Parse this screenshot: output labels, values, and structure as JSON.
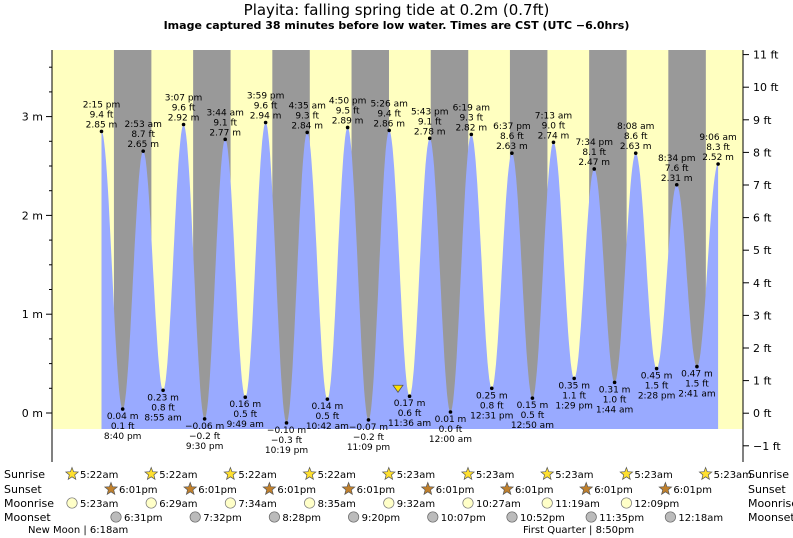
{
  "title": "Playita: falling  spring tide at 0.2m (0.7ft)",
  "subtitle": "Image captured 38 minutes before low water. Times are CST (UTC −6.0hrs)",
  "colors": {
    "day": "#ffffc0",
    "night": "#999999",
    "tide": "#99aaff",
    "moonlight": "#ffffc8",
    "moondark": "#bbbbbb",
    "star": "#ffe030",
    "sunset_star": "#c0802c"
  },
  "chart_data": {
    "type": "area",
    "title": "Playita: falling  spring tide at 0.2m (0.7ft)",
    "left_axis": {
      "unit": "m",
      "ticks": [
        {
          "v": 0,
          "label": "0 m"
        },
        {
          "v": 1,
          "label": "1 m"
        },
        {
          "v": 2,
          "label": "2 m"
        },
        {
          "v": 3,
          "label": "3 m"
        }
      ]
    },
    "right_axis": {
      "unit": "ft",
      "ticks": [
        "−1 ft",
        "0 ft",
        "1 ft",
        "2 ft",
        "3 ft",
        "4 ft",
        "5 ft",
        "6 ft",
        "7 ft",
        "8 ft",
        "9 ft",
        "10 ft",
        "11 ft"
      ]
    },
    "ylim_m": [
      -0.4,
      3.4
    ],
    "tides": [
      {
        "type": "high",
        "time": "2:15 pm",
        "ft": "9.4 ft",
        "m": "2.85 m",
        "value": 2.85
      },
      {
        "type": "low",
        "time": "8:40 pm",
        "ft": "0.1 ft",
        "m": "0.04 m",
        "value": 0.04
      },
      {
        "type": "high",
        "time": "2:53 am",
        "ft": "8.7 ft",
        "m": "2.65 m",
        "value": 2.65
      },
      {
        "type": "low",
        "time": "8:55 am",
        "ft": "0.8 ft",
        "m": "0.23 m",
        "value": 0.23
      },
      {
        "type": "high",
        "time": "3:07 pm",
        "ft": "9.6 ft",
        "m": "2.92 m",
        "value": 2.92
      },
      {
        "type": "low",
        "time": "9:30 pm",
        "ft": "−0.2 ft",
        "m": "−0.06 m",
        "value": -0.06
      },
      {
        "type": "high",
        "time": "3:44 am",
        "ft": "9.1 ft",
        "m": "2.77 m",
        "value": 2.77
      },
      {
        "type": "low",
        "time": "9:49 am",
        "ft": "0.5 ft",
        "m": "0.16 m",
        "value": 0.16
      },
      {
        "type": "high",
        "time": "3:59 pm",
        "ft": "9.6 ft",
        "m": "2.94 m",
        "value": 2.94
      },
      {
        "type": "low",
        "time": "10:19 pm",
        "ft": "−0.3 ft",
        "m": "−0.10 m",
        "value": -0.1
      },
      {
        "type": "high",
        "time": "4:35 am",
        "ft": "9.3 ft",
        "m": "2.84 m",
        "value": 2.84
      },
      {
        "type": "low",
        "time": "10:42 am",
        "ft": "0.5 ft",
        "m": "0.14 m",
        "value": 0.14
      },
      {
        "type": "high",
        "time": "4:50 pm",
        "ft": "9.5 ft",
        "m": "2.89 m",
        "value": 2.89
      },
      {
        "type": "low",
        "time": "11:09 pm",
        "ft": "−0.2 ft",
        "m": "−0.07 m",
        "value": -0.07
      },
      {
        "type": "high",
        "time": "5:26 am",
        "ft": "9.4 ft",
        "m": "2.86 m",
        "value": 2.86
      },
      {
        "type": "low",
        "time": "11:36 am",
        "ft": "0.6 ft",
        "m": "0.17 m",
        "value": 0.17
      },
      {
        "type": "high",
        "time": "5:43 pm",
        "ft": "9.1 ft",
        "m": "2.78 m",
        "value": 2.78
      },
      {
        "type": "low",
        "time": "12:00 am",
        "ft": "0.0 ft",
        "m": "0.01 m",
        "value": 0.01
      },
      {
        "type": "high",
        "time": "6:19 am",
        "ft": "9.3 ft",
        "m": "2.82 m",
        "value": 2.82
      },
      {
        "type": "low",
        "time": "12:31 pm",
        "ft": "0.8 ft",
        "m": "0.25 m",
        "value": 0.25
      },
      {
        "type": "high",
        "time": "6:37 pm",
        "ft": "8.6 ft",
        "m": "2.63 m",
        "value": 2.63
      },
      {
        "type": "low",
        "time": "12:50 am",
        "ft": "0.5 ft",
        "m": "0.15 m",
        "value": 0.15
      },
      {
        "type": "high",
        "time": "7:13 am",
        "ft": "9.0 ft",
        "m": "2.74 m",
        "value": 2.74
      },
      {
        "type": "low",
        "time": "1:29 pm",
        "ft": "1.1 ft",
        "m": "0.35 m",
        "value": 0.35
      },
      {
        "type": "high",
        "time": "7:34 pm",
        "ft": "8.1 ft",
        "m": "2.47 m",
        "value": 2.47
      },
      {
        "type": "low",
        "time": "1:44 am",
        "ft": "1.0 ft",
        "m": "0.31 m",
        "value": 0.31
      },
      {
        "type": "high",
        "time": "8:08 am",
        "ft": "8.6 ft",
        "m": "2.63 m",
        "value": 2.63
      },
      {
        "type": "low",
        "time": "2:28 pm",
        "ft": "1.5 ft",
        "m": "0.45 m",
        "value": 0.45
      },
      {
        "type": "high",
        "time": "8:34 pm",
        "ft": "7.6 ft",
        "m": "2.31 m",
        "value": 2.31
      },
      {
        "type": "low",
        "time": "2:41 am",
        "ft": "1.5 ft",
        "m": "0.47 m",
        "value": 0.47
      },
      {
        "type": "high",
        "time": "9:06 am",
        "ft": "8.3 ft",
        "m": "2.52 m",
        "value": 2.52
      }
    ],
    "current_level": {
      "m": 0.21
    },
    "sunrise": [
      "5:22am",
      "5:22am",
      "5:22am",
      "5:22am",
      "5:23am",
      "5:23am",
      "5:23am",
      "5:23am",
      "5:23am"
    ],
    "sunset": [
      "6:01pm",
      "6:01pm",
      "6:01pm",
      "6:01pm",
      "6:01pm",
      "6:01pm",
      "6:01pm",
      "6:01pm"
    ],
    "moonrise": [
      "5:23am",
      "6:29am",
      "7:34am",
      "8:35am",
      "9:32am",
      "10:27am",
      "11:19am",
      "12:09pm"
    ],
    "moonset": [
      "6:31pm",
      "7:32pm",
      "8:28pm",
      "9:20pm",
      "10:07pm",
      "10:52pm",
      "11:35pm",
      "12:18am"
    ],
    "row_labels": {
      "sunrise": "Sunrise",
      "sunset": "Sunset",
      "moonrise": "Moonrise",
      "moonset": "Moonset"
    },
    "moon_phases": [
      "New Moon | 6:18am",
      "First Quarter | 8:50pm"
    ]
  }
}
